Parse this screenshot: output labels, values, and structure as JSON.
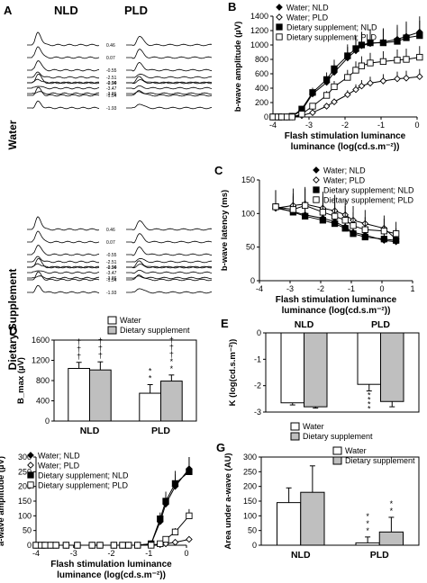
{
  "panel_a": {
    "letter": "A",
    "col_nld": "NLD",
    "col_pld": "PLD",
    "group_water": "Water",
    "group_supp": "Dietary Supplement",
    "water_labels": [
      "0.46",
      "0.07",
      "-0.55",
      "-0.94",
      "-1.54",
      "-1.93",
      "-2.51",
      "-2.90",
      "-3.47",
      "-3.86"
    ],
    "supp_labels": [
      "0.46",
      "0.07",
      "-0.55",
      "-0.94",
      "-1.54",
      "-1.93",
      "-2.51",
      "-2.90",
      "-3.47",
      "-3.86"
    ]
  },
  "chart_data": [
    {
      "id": "B",
      "type": "line",
      "ylabel": "b-wave amplitude (µV)",
      "xlabel": "Flash stimulation luminance (log(cd.s.m⁻²))",
      "xlim": [
        -4,
        0
      ],
      "ylim": [
        0,
        1400
      ],
      "xticks": [
        -4,
        -3,
        -2,
        -1,
        0
      ],
      "yticks": [
        0,
        200,
        400,
        600,
        800,
        1000,
        1200,
        1400
      ],
      "legend_position": "top-left",
      "x": [
        -4,
        -3.86,
        -3.76,
        -3.61,
        -3.47,
        -3.2,
        -2.9,
        -2.51,
        -2.3,
        -1.93,
        -1.7,
        -1.54,
        -1.3,
        -0.94,
        -0.55,
        -0.3,
        0.07
      ],
      "series": [
        {
          "name": "Water; NLD",
          "marker": "filled-diamond",
          "values": [
            0,
            0,
            0,
            0,
            10,
            90,
            320,
            480,
            620,
            820,
            920,
            990,
            1020,
            1040,
            1080,
            1120,
            1180
          ]
        },
        {
          "name": "Water; PLD",
          "marker": "open-diamond",
          "values": [
            0,
            0,
            0,
            0,
            0,
            20,
            60,
            150,
            210,
            310,
            380,
            430,
            470,
            500,
            530,
            540,
            560
          ]
        },
        {
          "name": "Dietary supplement; NLD",
          "marker": "filled-square",
          "values": [
            0,
            0,
            0,
            0,
            10,
            110,
            340,
            520,
            670,
            850,
            950,
            1000,
            1030,
            1030,
            1050,
            1100,
            1130
          ]
        },
        {
          "name": "Dietary supplement; PLD",
          "marker": "open-square",
          "values": [
            0,
            0,
            0,
            0,
            0,
            40,
            150,
            300,
            420,
            550,
            650,
            710,
            750,
            770,
            790,
            800,
            830
          ]
        }
      ]
    },
    {
      "id": "C",
      "type": "line",
      "ylabel": "b-wave latency (ms)",
      "xlabel": "Flash stimulation luminance (log(cd.s.m⁻²))",
      "xlim": [
        -4,
        1
      ],
      "ylim": [
        0,
        150
      ],
      "xticks": [
        -4,
        -3,
        -2,
        -1,
        0,
        1
      ],
      "yticks": [
        0,
        50,
        100,
        150
      ],
      "legend_position": "top-right",
      "x": [
        -3.47,
        -2.9,
        -2.51,
        -1.93,
        -1.54,
        -1.2,
        -0.94,
        -0.55,
        0.07,
        0.46
      ],
      "series": [
        {
          "name": "Water; NLD",
          "marker": "filled-diamond",
          "values": [
            108,
            103,
            98,
            93,
            88,
            80,
            72,
            68,
            60,
            58
          ]
        },
        {
          "name": "Water; PLD",
          "marker": "open-diamond",
          "values": [
            108,
            112,
            114,
            108,
            104,
            98,
            90,
            85,
            78,
            62
          ]
        },
        {
          "name": "Dietary supplement; NLD",
          "marker": "filled-square",
          "values": [
            110,
            102,
            96,
            90,
            85,
            78,
            70,
            65,
            62,
            60
          ]
        },
        {
          "name": "Dietary supplement; PLD",
          "marker": "open-square",
          "values": [
            110,
            106,
            112,
            102,
            96,
            90,
            82,
            76,
            74,
            70
          ]
        }
      ]
    },
    {
      "id": "D",
      "type": "bar",
      "categories": [
        "NLD",
        "PLD"
      ],
      "ylabel": "B_max (µV)",
      "ylim": [
        0,
        1600
      ],
      "yticks": [
        0,
        400,
        800,
        1200,
        1600
      ],
      "legend_position": "top-right",
      "series": [
        {
          "name": "Water",
          "values": [
            1040,
            550
          ],
          "errors": [
            120,
            170
          ]
        },
        {
          "name": "Dietary supplement",
          "values": [
            1010,
            790
          ],
          "errors": [
            160,
            120
          ]
        }
      ],
      "annotations": [
        {
          "bar": "NLD-Water",
          "text": "† † †"
        },
        {
          "bar": "NLD-Supplement",
          "text": "† † †"
        },
        {
          "bar": "PLD-Water",
          "text": "* *"
        },
        {
          "bar": "PLD-Supplement",
          "text": "† † † * *"
        }
      ]
    },
    {
      "id": "E",
      "type": "bar",
      "categories": [
        "NLD",
        "PLD"
      ],
      "ylabel": "K (log(cd.s.m⁻²))",
      "ylim": [
        -3,
        0
      ],
      "yticks": [
        -3,
        -2,
        -1,
        0
      ],
      "legend_position": "bottom-right",
      "series": [
        {
          "name": "Water",
          "values": [
            -2.65,
            -1.95
          ],
          "errors": [
            0.08,
            0.25
          ]
        },
        {
          "name": "Dietary supplement",
          "values": [
            -2.8,
            -2.6
          ],
          "errors": [
            0.05,
            0.2
          ]
        }
      ],
      "annotations": [
        {
          "bar": "PLD-Water",
          "text": "* * * *"
        }
      ]
    },
    {
      "id": "F",
      "type": "line",
      "ylabel": "a-wave amplitude (µV)",
      "xlabel": "Flash stimulation luminance (log(cd.s.m⁻²))",
      "xlim": [
        -4,
        0
      ],
      "ylim": [
        0,
        300
      ],
      "xticks": [
        -4,
        -3,
        -2,
        -1,
        0
      ],
      "yticks": [
        0,
        50,
        100,
        150,
        200,
        250,
        300
      ],
      "legend_position": "top-left",
      "x": [
        -4,
        -3.86,
        -3.76,
        -3.61,
        -3.47,
        -3.2,
        -2.9,
        -2.51,
        -2.3,
        -1.93,
        -1.7,
        -1.54,
        -1.3,
        -0.94,
        -0.7,
        -0.55,
        -0.3,
        0.07
      ],
      "series": [
        {
          "name": "Water; NLD",
          "marker": "filled-diamond",
          "values": [
            0,
            0,
            0,
            0,
            0,
            0,
            0,
            0,
            0,
            0,
            0,
            0,
            0,
            5,
            80,
            140,
            200,
            260
          ]
        },
        {
          "name": "Water; PLD",
          "marker": "open-diamond",
          "values": [
            0,
            0,
            0,
            0,
            0,
            0,
            0,
            0,
            0,
            0,
            0,
            0,
            0,
            0,
            2,
            5,
            10,
            20
          ]
        },
        {
          "name": "Dietary supplement; NLD",
          "marker": "filled-square",
          "values": [
            0,
            0,
            0,
            0,
            0,
            0,
            0,
            0,
            0,
            0,
            0,
            0,
            0,
            5,
            90,
            150,
            210,
            250
          ]
        },
        {
          "name": "Dietary supplement; PLD",
          "marker": "open-square",
          "values": [
            0,
            0,
            0,
            0,
            0,
            0,
            0,
            0,
            0,
            0,
            0,
            0,
            0,
            0,
            5,
            20,
            45,
            100
          ]
        }
      ]
    },
    {
      "id": "G",
      "type": "bar",
      "categories": [
        "NLD",
        "PLD"
      ],
      "ylabel": "Area under a-wave (AU)",
      "ylim": [
        0,
        300
      ],
      "yticks": [
        0,
        50,
        100,
        150,
        200,
        250,
        300
      ],
      "legend_position": "top-right",
      "series": [
        {
          "name": "Water",
          "values": [
            145,
            8
          ],
          "errors": [
            50,
            20
          ]
        },
        {
          "name": "Dietary supplement",
          "values": [
            180,
            45
          ],
          "errors": [
            90,
            50
          ]
        }
      ],
      "annotations": [
        {
          "bar": "PLD-Water",
          "text": "* * *"
        },
        {
          "bar": "PLD-Supplement",
          "text": "* *"
        }
      ]
    }
  ]
}
